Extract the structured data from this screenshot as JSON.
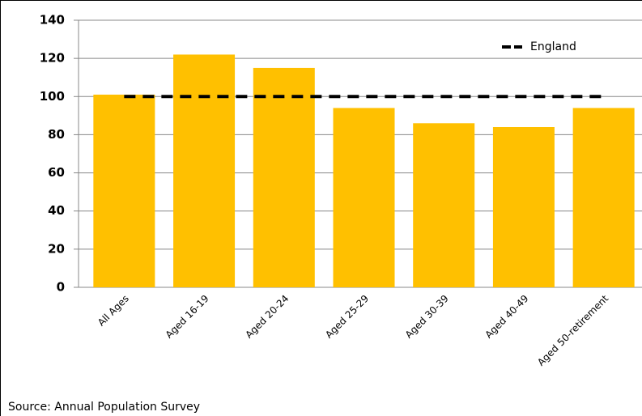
{
  "chart_data": {
    "type": "bar",
    "categories": [
      "All Ages",
      "Aged 16-19",
      "Aged 20-24",
      "Aged 25-29",
      "Aged 30-39",
      "Aged 40-49",
      "Aged 50-retirement"
    ],
    "series": [
      {
        "type": "bar",
        "color": "#ffc000",
        "values": [
          101,
          122,
          115,
          94,
          86,
          84,
          94
        ]
      },
      {
        "type": "line",
        "name": "England",
        "color": "#000000",
        "dashed": true,
        "values": [
          100,
          100,
          100,
          100,
          100,
          100,
          100
        ]
      }
    ],
    "ylim": [
      0,
      140
    ],
    "yticks": [
      0,
      20,
      40,
      60,
      80,
      100,
      120,
      140
    ],
    "grid": true,
    "legend": "top-right",
    "source": "Source: Annual Population Survey"
  }
}
